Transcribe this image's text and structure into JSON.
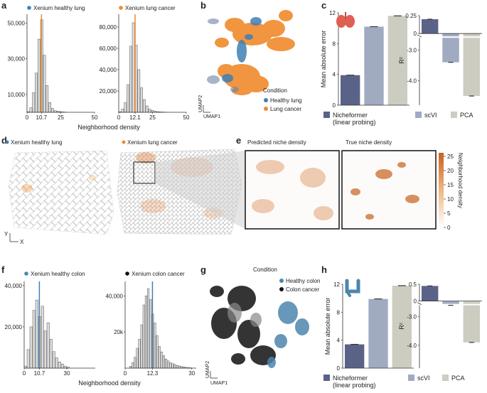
{
  "panel_labels": {
    "a": "a",
    "b": "b",
    "c": "c",
    "d": "d",
    "e": "e",
    "f": "f",
    "g": "g",
    "h": "h"
  },
  "colors": {
    "healthy": "#3f7fb5",
    "cancer": "#f08a2c",
    "colon_healthy": "#4d86ad",
    "colon_cancer": "#111111",
    "niche": "#d0702a",
    "nicheformer": "#5a6387",
    "scvi": "#a0abc2",
    "pca": "#ccccc0",
    "hist_bar": "#dcdcdc"
  },
  "chart_data": [
    {
      "id": "a1",
      "type": "bar",
      "title": "Xenium healthy lung",
      "legend_dot": "#3f7fb5",
      "xlabel": "Neighborhood density",
      "ylabel": "",
      "x_ticks": [
        "0",
        "10.7",
        "25",
        "50"
      ],
      "y_ticks": [
        "10,000",
        "30,000",
        "50,000"
      ],
      "xlim": [
        0,
        50
      ],
      "ylim": [
        0,
        55000
      ],
      "bin_width": 2,
      "bin_starts": [
        0,
        2,
        4,
        6,
        8,
        10,
        12,
        14,
        16,
        18,
        20,
        22,
        24,
        26,
        28
      ],
      "values": [
        300,
        2500,
        11000,
        22000,
        41000,
        52000,
        32000,
        15000,
        5500,
        2200,
        900,
        600,
        400,
        200,
        100
      ],
      "marker": 10.7
    },
    {
      "id": "a2",
      "type": "bar",
      "title": "Xenium lung cancer",
      "legend_dot": "#f08a2c",
      "xlabel": "",
      "ylabel": "",
      "x_ticks": [
        "0",
        "12.1",
        "25",
        "50"
      ],
      "y_ticks": [
        "20,000",
        "40,000",
        "60,000",
        "80,000"
      ],
      "xlim": [
        0,
        50
      ],
      "ylim": [
        0,
        92000
      ],
      "bin_width": 2,
      "bin_starts": [
        0,
        2,
        4,
        6,
        8,
        10,
        12,
        14,
        16,
        18,
        20,
        22,
        24,
        26,
        28,
        30,
        32,
        34
      ],
      "values": [
        500,
        3000,
        9000,
        26000,
        62000,
        84000,
        63000,
        40000,
        23000,
        12000,
        6000,
        3000,
        1800,
        1000,
        600,
        400,
        250,
        150
      ],
      "marker": 12.1
    },
    {
      "id": "c1",
      "type": "bar",
      "ylabel": "Mean absolute error",
      "y_ticks": [
        "0",
        "4",
        "8",
        "12"
      ],
      "ylim": [
        0,
        12
      ],
      "categories": [
        "Nicheformer (linear probing)",
        "scVI",
        "PCA"
      ],
      "values": [
        3.9,
        10.2,
        11.6
      ]
    },
    {
      "id": "c2",
      "type": "bar",
      "ylabel": "R²",
      "y_ticks": [
        "0.25",
        "0",
        "-3.0",
        "-4.0"
      ],
      "categories": [
        "Nicheformer",
        "scVI",
        "PCA"
      ],
      "values": [
        0.2,
        -3.4,
        -4.5
      ]
    },
    {
      "id": "f1",
      "type": "bar",
      "title": "Xenium healthy colon",
      "legend_dot": "#4d86ad",
      "xlabel": "Neighborhood density",
      "ylabel": "",
      "x_ticks": [
        "0",
        "10.7",
        "30"
      ],
      "y_ticks": [
        "20,000",
        "40,000"
      ],
      "xlim": [
        0,
        50
      ],
      "ylim": [
        0,
        42000
      ],
      "bin_width": 2,
      "bin_starts": [
        0,
        2,
        4,
        6,
        8,
        10,
        12,
        14,
        16,
        18,
        20,
        22,
        24,
        26,
        28,
        30
      ],
      "values": [
        1000,
        9000,
        20000,
        28000,
        33000,
        25000,
        30000,
        18000,
        22000,
        14000,
        8000,
        5000,
        3000,
        2000,
        1000,
        500
      ],
      "marker": 10.7
    },
    {
      "id": "f2",
      "type": "bar",
      "title": "Xenium colon cancer",
      "legend_dot": "#111111",
      "xlabel": "",
      "ylabel": "",
      "x_ticks": [
        "0",
        "12.3",
        "30"
      ],
      "y_ticks": [
        "20k",
        "40,000"
      ],
      "xlim": [
        0,
        32
      ],
      "ylim": [
        0,
        48000
      ],
      "bin_width": 1,
      "bin_starts": [
        2,
        3,
        4,
        5,
        6,
        7,
        8,
        9,
        10,
        11,
        12,
        13,
        14,
        15,
        16,
        17,
        18,
        19,
        20,
        21,
        22,
        23,
        24,
        25,
        26,
        27,
        28,
        29
      ],
      "values": [
        1000,
        3000,
        6000,
        11000,
        16000,
        24000,
        35000,
        40000,
        44000,
        38000,
        30000,
        25000,
        18000,
        12000,
        9000,
        7000,
        5000,
        4000,
        3000,
        2500,
        2000,
        1500,
        1200,
        900,
        700,
        500,
        300,
        200
      ],
      "marker": 12.3
    },
    {
      "id": "h1",
      "type": "bar",
      "ylabel": "Mean absolute error",
      "y_ticks": [
        "0",
        "4",
        "8",
        "12"
      ],
      "ylim": [
        0,
        12
      ],
      "categories": [
        "Nicheformer (linear probing)",
        "scVI",
        "PCA"
      ],
      "values": [
        3.4,
        9.9,
        11.8
      ]
    },
    {
      "id": "h2",
      "type": "bar",
      "ylabel": "R²",
      "y_ticks": [
        "0.5",
        "0",
        "-3.0",
        "-4.0"
      ],
      "categories": [
        "Nicheformer",
        "scVI",
        "PCA"
      ],
      "values": [
        0.45,
        -2.6,
        -3.9
      ]
    }
  ],
  "umap_b": {
    "legend_title": "Condition",
    "items": [
      "Healthy lung",
      "Lung cancer"
    ],
    "axis_x": "UMAP1",
    "axis_y": "UMAP2"
  },
  "umap_g": {
    "legend_title": "Condition",
    "items": [
      "Healthy colon",
      "Colon cancer"
    ],
    "axis_x": "UMAP1",
    "axis_y": "UMAP2"
  },
  "legend_c": {
    "items": [
      "Nicheformer\n(linear probing)",
      "scVI",
      "PCA"
    ]
  },
  "panel_d": {
    "titles": [
      "Xenium healthy lung",
      "Xenium lung cancer"
    ],
    "axis_x": "X",
    "axis_y": "Y"
  },
  "panel_e": {
    "titles": [
      "Predicted niche density",
      "True niche density"
    ],
    "colorbar_label": "Neighborhood density",
    "colorbar_ticks": [
      "0",
      "5",
      "10",
      "15",
      "20",
      "25"
    ]
  }
}
